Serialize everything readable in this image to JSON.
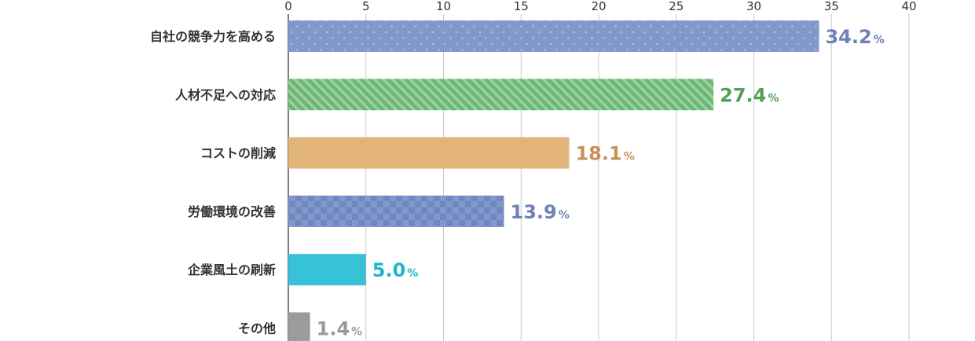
{
  "chart_data": {
    "type": "bar",
    "orientation": "horizontal",
    "categories": [
      "自社の競争力を高める",
      "人材不足への対応",
      "コストの削減",
      "労働環境の改善",
      "企業風土の刷新",
      "その他"
    ],
    "values": [
      34.2,
      27.4,
      18.1,
      13.9,
      5.0,
      1.4
    ],
    "value_labels": [
      "34.2",
      "27.4",
      "18.1",
      "13.9",
      "5.0",
      "1.4"
    ],
    "unit": "%",
    "xlim": [
      0,
      40
    ],
    "xticks": [
      "0",
      "5",
      "10",
      "15",
      "20",
      "25",
      "30",
      "35",
      "40"
    ],
    "tick_values": [
      0,
      5,
      10,
      15,
      20,
      25,
      30,
      35,
      40
    ],
    "x_axis_position": "top",
    "grid": true,
    "bar_colors": [
      "#8198cb",
      "#6db774",
      "#e3b47a",
      "#8198cb",
      "#38c2d8",
      "#9c9c9c"
    ],
    "bar_patterns": [
      "dots",
      "diagonal-stripes",
      "solid",
      "checker",
      "solid",
      "solid"
    ],
    "label_colors": [
      "#6e82b8",
      "#4fa256",
      "#c99158",
      "#6e82b8",
      "#22b4cb",
      "#999999"
    ]
  }
}
